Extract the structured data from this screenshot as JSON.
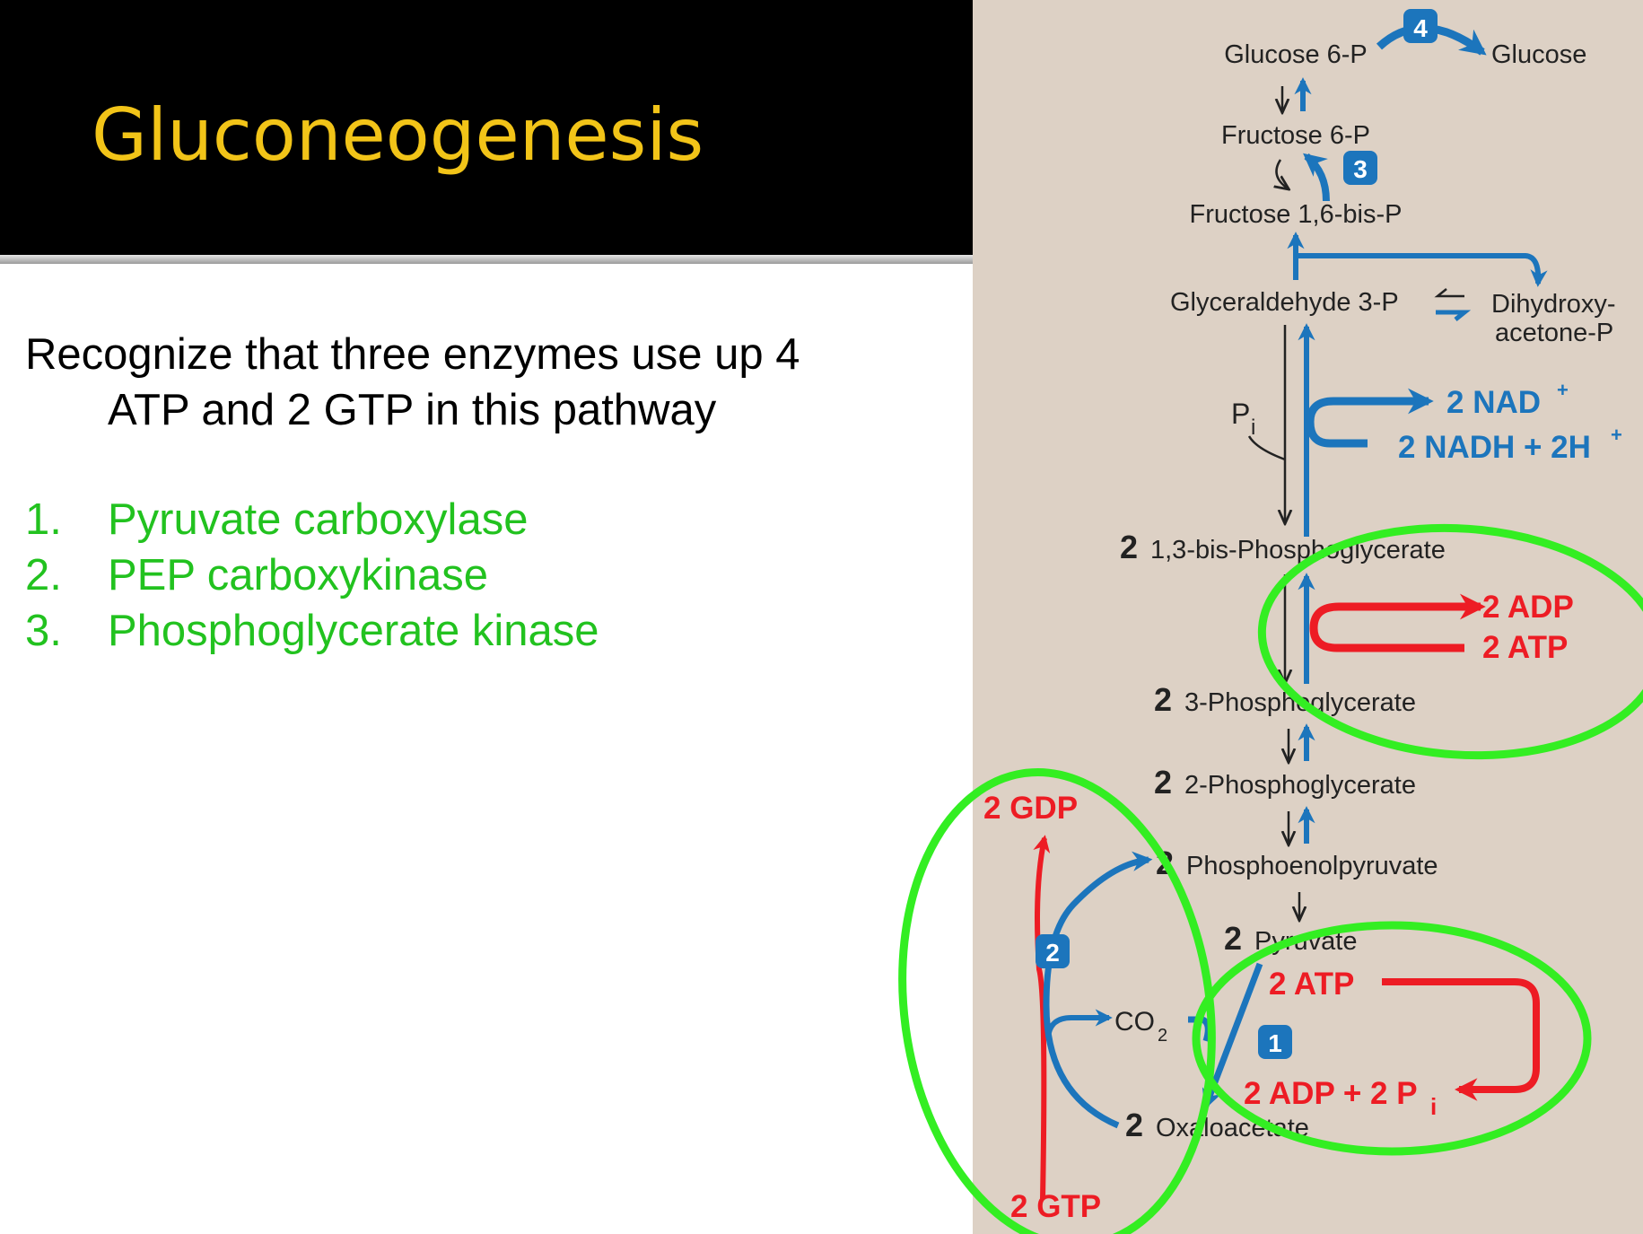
{
  "slide": {
    "title": "Gluconeogenesis",
    "intro_line1": "Recognize that three enzymes use up 4",
    "intro_line2": "ATP and 2 GTP in this pathway",
    "enzymes": [
      {
        "num": "1.",
        "name": "Pyruvate carboxylase"
      },
      {
        "num": "2.",
        "name": "PEP carboxykinase"
      },
      {
        "num": "3.",
        "name": "Phosphoglycerate kinase"
      }
    ]
  },
  "colors": {
    "title_text": "#f2c418",
    "enzyme_list": "#22c21f",
    "pathway_blue": "#1c75bc",
    "energy_red": "#ed1c24",
    "highlight_green": "#33ee22",
    "panel_bg": "#ddd1c5"
  },
  "diagram": {
    "metabolites": {
      "glucose6p": "Glucose 6-P",
      "glucose": "Glucose",
      "fructose6p": "Fructose 6-P",
      "fructose16bisp": "Fructose 1,6-bis-P",
      "g3p": "Glyceraldehyde 3-P",
      "dhap_1": "Dihydroxy-",
      "dhap_2": "acetone-P",
      "bpg13": "1,3-bis-Phosphoglycerate",
      "pg3": "3-Phosphoglycerate",
      "pg2": "2-Phosphoglycerate",
      "pep": "Phosphoenolpyruvate",
      "pyruvate": "Pyruvate",
      "oxaloacetate": "Oxaloacetate"
    },
    "stoich": "2",
    "cofactors": {
      "pi_main": "P",
      "pi_sub": "i",
      "nad": "2 NAD",
      "nad_sup": "+",
      "nadh": "2 NADH + 2H",
      "nadh_sup": "+",
      "adp_pgk": "2 ADP",
      "atp_pgk": "2 ATP",
      "gdp": "2 GDP",
      "gtp": "2 GTP",
      "co2_main": "CO",
      "co2_sub": "2",
      "atp_pc": "2 ATP",
      "adp_pi_pc": "2 ADP + 2 P",
      "adp_pi_sub": "i"
    },
    "enzyme_badges": [
      "4",
      "3",
      "2",
      "1"
    ]
  }
}
